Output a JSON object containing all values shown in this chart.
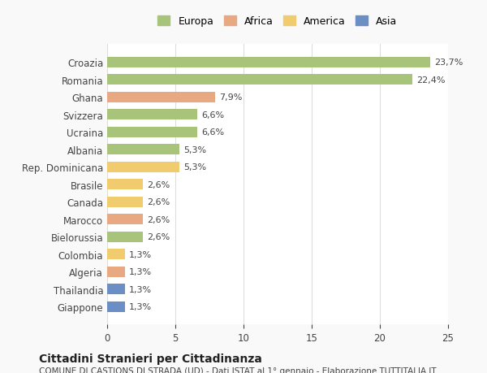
{
  "countries": [
    "Croazia",
    "Romania",
    "Ghana",
    "Svizzera",
    "Ucraina",
    "Albania",
    "Rep. Dominicana",
    "Brasile",
    "Canada",
    "Marocco",
    "Bielorussia",
    "Colombia",
    "Algeria",
    "Thailandia",
    "Giappone"
  ],
  "values": [
    23.7,
    22.4,
    7.9,
    6.6,
    6.6,
    5.3,
    5.3,
    2.6,
    2.6,
    2.6,
    2.6,
    1.3,
    1.3,
    1.3,
    1.3
  ],
  "labels": [
    "23,7%",
    "22,4%",
    "7,9%",
    "6,6%",
    "6,6%",
    "5,3%",
    "5,3%",
    "2,6%",
    "2,6%",
    "2,6%",
    "2,6%",
    "1,3%",
    "1,3%",
    "1,3%",
    "1,3%"
  ],
  "categories": [
    "Europa",
    "Europa",
    "Africa",
    "Europa",
    "Europa",
    "Europa",
    "America",
    "America",
    "America",
    "Africa",
    "Europa",
    "America",
    "Africa",
    "Asia",
    "Asia"
  ],
  "colors": {
    "Europa": "#a8c47a",
    "Africa": "#e8a882",
    "America": "#f0cc6e",
    "Asia": "#6b8fc4"
  },
  "legend_order": [
    "Europa",
    "Africa",
    "America",
    "Asia"
  ],
  "title": "Cittadini Stranieri per Cittadinanza",
  "subtitle": "COMUNE DI CASTIONS DI STRADA (UD) - Dati ISTAT al 1° gennaio - Elaborazione TUTTITALIA.IT",
  "xlim": [
    0,
    25
  ],
  "xticks": [
    0,
    5,
    10,
    15,
    20,
    25
  ],
  "background_color": "#f9f9f9",
  "bar_background": "#ffffff",
  "grid_color": "#dddddd"
}
